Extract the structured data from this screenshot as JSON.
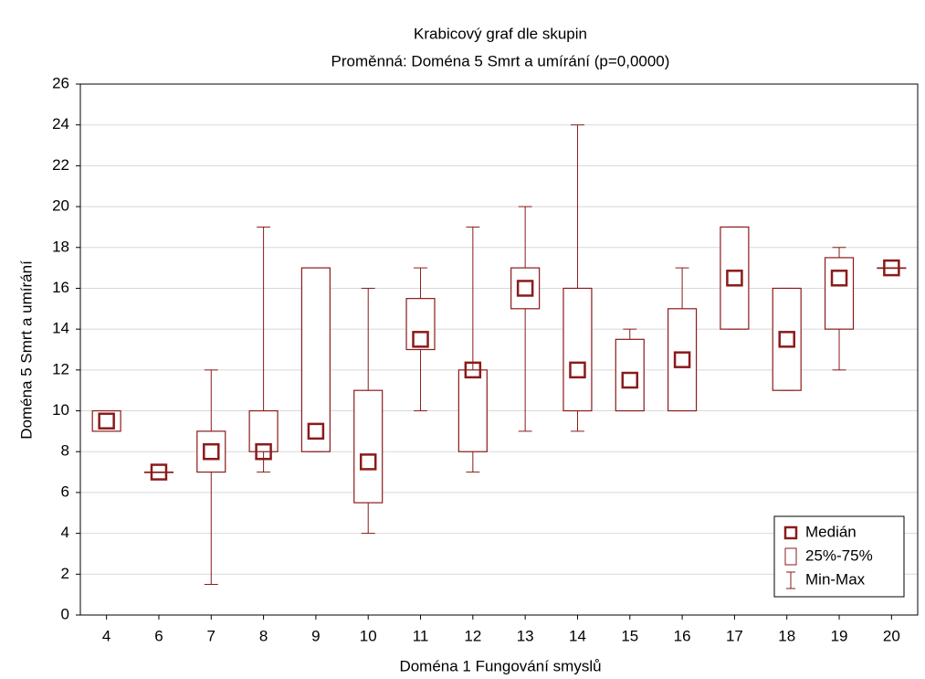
{
  "chart_data": {
    "type": "box",
    "title": "Krabicový graf dle skupin",
    "subtitle": "Proměnná: Doména 5 Smrt a umírání (p=0,0000)",
    "x_label": "Doména 1 Fungování smyslů",
    "y_label": "Doména 5 Smrt a umírání",
    "categories": [
      "4",
      "6",
      "7",
      "8",
      "9",
      "10",
      "11",
      "12",
      "13",
      "14",
      "15",
      "16",
      "17",
      "18",
      "19",
      "20"
    ],
    "min": [
      9,
      7,
      1.5,
      7,
      8,
      4,
      10,
      7,
      9,
      9,
      10,
      10,
      14,
      11,
      12,
      17
    ],
    "q1": [
      9,
      7,
      7,
      8,
      8,
      5.5,
      13,
      8,
      15,
      10,
      10,
      10,
      14,
      11,
      14,
      17
    ],
    "median": [
      9.5,
      7,
      8,
      8,
      9,
      7.5,
      13.5,
      12,
      16,
      12,
      11.5,
      12.5,
      16.5,
      13.5,
      16.5,
      17
    ],
    "q3": [
      10,
      7,
      9,
      10,
      17,
      11,
      15.5,
      12,
      17,
      16,
      13.5,
      15,
      19,
      16,
      17.5,
      17
    ],
    "max": [
      10,
      7,
      12,
      19,
      17,
      16,
      17,
      19,
      20,
      24,
      14,
      17,
      19,
      16,
      18,
      17
    ],
    "legend": [
      "Medián",
      "25%-75%",
      "Min-Max"
    ],
    "legend_position": "lower right",
    "color": "#8b1a1a",
    "ylim": [
      0,
      26
    ],
    "yticks": [
      0,
      2,
      4,
      6,
      8,
      10,
      12,
      14,
      16,
      18,
      20,
      22,
      24,
      26
    ],
    "grid": true
  }
}
